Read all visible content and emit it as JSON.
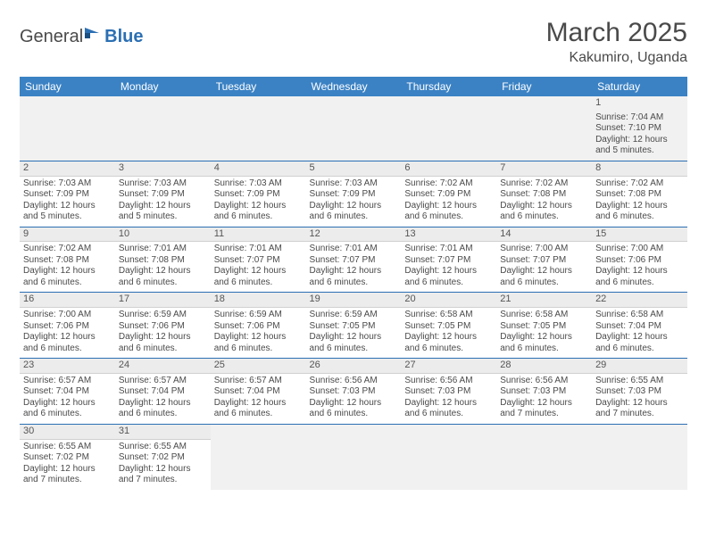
{
  "logo": {
    "general": "General",
    "blue": "Blue"
  },
  "title": "March 2025",
  "location": "Kakumiro, Uganda",
  "colors": {
    "header_bg": "#3b82c4",
    "header_text": "#ffffff",
    "rule": "#2b6fb3",
    "daynum_bg": "#ececec",
    "text": "#4a4a4a"
  },
  "weekdays": [
    "Sunday",
    "Monday",
    "Tuesday",
    "Wednesday",
    "Thursday",
    "Friday",
    "Saturday"
  ],
  "weeks": [
    [
      null,
      null,
      null,
      null,
      null,
      null,
      {
        "n": "1",
        "sr": "Sunrise: 7:04 AM",
        "ss": "Sunset: 7:10 PM",
        "dl": "Daylight: 12 hours and 5 minutes."
      }
    ],
    [
      {
        "n": "2",
        "sr": "Sunrise: 7:03 AM",
        "ss": "Sunset: 7:09 PM",
        "dl": "Daylight: 12 hours and 5 minutes."
      },
      {
        "n": "3",
        "sr": "Sunrise: 7:03 AM",
        "ss": "Sunset: 7:09 PM",
        "dl": "Daylight: 12 hours and 5 minutes."
      },
      {
        "n": "4",
        "sr": "Sunrise: 7:03 AM",
        "ss": "Sunset: 7:09 PM",
        "dl": "Daylight: 12 hours and 6 minutes."
      },
      {
        "n": "5",
        "sr": "Sunrise: 7:03 AM",
        "ss": "Sunset: 7:09 PM",
        "dl": "Daylight: 12 hours and 6 minutes."
      },
      {
        "n": "6",
        "sr": "Sunrise: 7:02 AM",
        "ss": "Sunset: 7:09 PM",
        "dl": "Daylight: 12 hours and 6 minutes."
      },
      {
        "n": "7",
        "sr": "Sunrise: 7:02 AM",
        "ss": "Sunset: 7:08 PM",
        "dl": "Daylight: 12 hours and 6 minutes."
      },
      {
        "n": "8",
        "sr": "Sunrise: 7:02 AM",
        "ss": "Sunset: 7:08 PM",
        "dl": "Daylight: 12 hours and 6 minutes."
      }
    ],
    [
      {
        "n": "9",
        "sr": "Sunrise: 7:02 AM",
        "ss": "Sunset: 7:08 PM",
        "dl": "Daylight: 12 hours and 6 minutes."
      },
      {
        "n": "10",
        "sr": "Sunrise: 7:01 AM",
        "ss": "Sunset: 7:08 PM",
        "dl": "Daylight: 12 hours and 6 minutes."
      },
      {
        "n": "11",
        "sr": "Sunrise: 7:01 AM",
        "ss": "Sunset: 7:07 PM",
        "dl": "Daylight: 12 hours and 6 minutes."
      },
      {
        "n": "12",
        "sr": "Sunrise: 7:01 AM",
        "ss": "Sunset: 7:07 PM",
        "dl": "Daylight: 12 hours and 6 minutes."
      },
      {
        "n": "13",
        "sr": "Sunrise: 7:01 AM",
        "ss": "Sunset: 7:07 PM",
        "dl": "Daylight: 12 hours and 6 minutes."
      },
      {
        "n": "14",
        "sr": "Sunrise: 7:00 AM",
        "ss": "Sunset: 7:07 PM",
        "dl": "Daylight: 12 hours and 6 minutes."
      },
      {
        "n": "15",
        "sr": "Sunrise: 7:00 AM",
        "ss": "Sunset: 7:06 PM",
        "dl": "Daylight: 12 hours and 6 minutes."
      }
    ],
    [
      {
        "n": "16",
        "sr": "Sunrise: 7:00 AM",
        "ss": "Sunset: 7:06 PM",
        "dl": "Daylight: 12 hours and 6 minutes."
      },
      {
        "n": "17",
        "sr": "Sunrise: 6:59 AM",
        "ss": "Sunset: 7:06 PM",
        "dl": "Daylight: 12 hours and 6 minutes."
      },
      {
        "n": "18",
        "sr": "Sunrise: 6:59 AM",
        "ss": "Sunset: 7:06 PM",
        "dl": "Daylight: 12 hours and 6 minutes."
      },
      {
        "n": "19",
        "sr": "Sunrise: 6:59 AM",
        "ss": "Sunset: 7:05 PM",
        "dl": "Daylight: 12 hours and 6 minutes."
      },
      {
        "n": "20",
        "sr": "Sunrise: 6:58 AM",
        "ss": "Sunset: 7:05 PM",
        "dl": "Daylight: 12 hours and 6 minutes."
      },
      {
        "n": "21",
        "sr": "Sunrise: 6:58 AM",
        "ss": "Sunset: 7:05 PM",
        "dl": "Daylight: 12 hours and 6 minutes."
      },
      {
        "n": "22",
        "sr": "Sunrise: 6:58 AM",
        "ss": "Sunset: 7:04 PM",
        "dl": "Daylight: 12 hours and 6 minutes."
      }
    ],
    [
      {
        "n": "23",
        "sr": "Sunrise: 6:57 AM",
        "ss": "Sunset: 7:04 PM",
        "dl": "Daylight: 12 hours and 6 minutes."
      },
      {
        "n": "24",
        "sr": "Sunrise: 6:57 AM",
        "ss": "Sunset: 7:04 PM",
        "dl": "Daylight: 12 hours and 6 minutes."
      },
      {
        "n": "25",
        "sr": "Sunrise: 6:57 AM",
        "ss": "Sunset: 7:04 PM",
        "dl": "Daylight: 12 hours and 6 minutes."
      },
      {
        "n": "26",
        "sr": "Sunrise: 6:56 AM",
        "ss": "Sunset: 7:03 PM",
        "dl": "Daylight: 12 hours and 6 minutes."
      },
      {
        "n": "27",
        "sr": "Sunrise: 6:56 AM",
        "ss": "Sunset: 7:03 PM",
        "dl": "Daylight: 12 hours and 6 minutes."
      },
      {
        "n": "28",
        "sr": "Sunrise: 6:56 AM",
        "ss": "Sunset: 7:03 PM",
        "dl": "Daylight: 12 hours and 7 minutes."
      },
      {
        "n": "29",
        "sr": "Sunrise: 6:55 AM",
        "ss": "Sunset: 7:03 PM",
        "dl": "Daylight: 12 hours and 7 minutes."
      }
    ],
    [
      {
        "n": "30",
        "sr": "Sunrise: 6:55 AM",
        "ss": "Sunset: 7:02 PM",
        "dl": "Daylight: 12 hours and 7 minutes."
      },
      {
        "n": "31",
        "sr": "Sunrise: 6:55 AM",
        "ss": "Sunset: 7:02 PM",
        "dl": "Daylight: 12 hours and 7 minutes."
      },
      null,
      null,
      null,
      null,
      null
    ]
  ]
}
